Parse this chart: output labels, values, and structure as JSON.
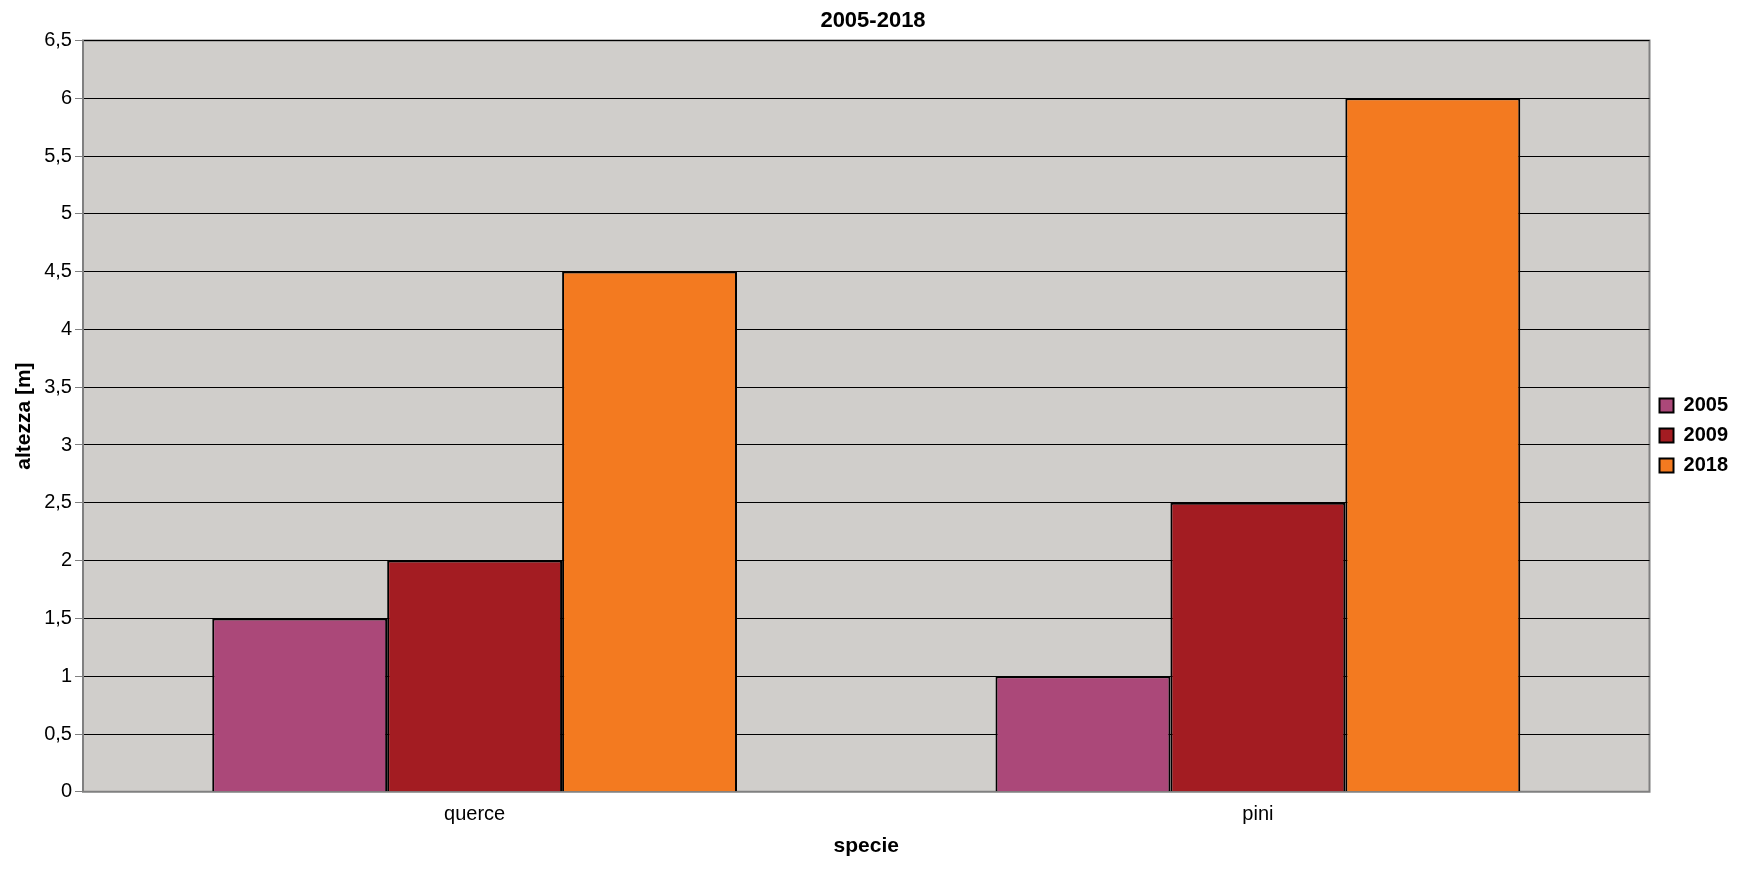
{
  "chart_data": {
    "type": "bar",
    "title": "2005-2018",
    "xlabel": "specie",
    "ylabel": "altezza [m]",
    "categories": [
      "querce",
      "pini"
    ],
    "series": [
      {
        "name": "2005",
        "color": "#ab4879",
        "values": [
          1.5,
          1
        ]
      },
      {
        "name": "2009",
        "color": "#a31c22",
        "values": [
          2,
          2.5
        ]
      },
      {
        "name": "2018",
        "color": "#f37a20",
        "values": [
          4.5,
          6
        ]
      }
    ],
    "ylim": [
      0,
      6.5
    ],
    "yticks": [
      0,
      {
        "value": 0.5,
        "label": "0,5"
      },
      1,
      {
        "value": 1.5,
        "label": "1,5"
      },
      2,
      {
        "value": 2.5,
        "label": "2,5"
      },
      3,
      {
        "value": 3.5,
        "label": "3,5"
      },
      4,
      {
        "value": 4.5,
        "label": "4,5"
      },
      5,
      {
        "value": 5.5,
        "label": "5,5"
      },
      6,
      {
        "value": 6.5,
        "label": "6,5"
      }
    ],
    "grid": "y",
    "legend": "right"
  }
}
